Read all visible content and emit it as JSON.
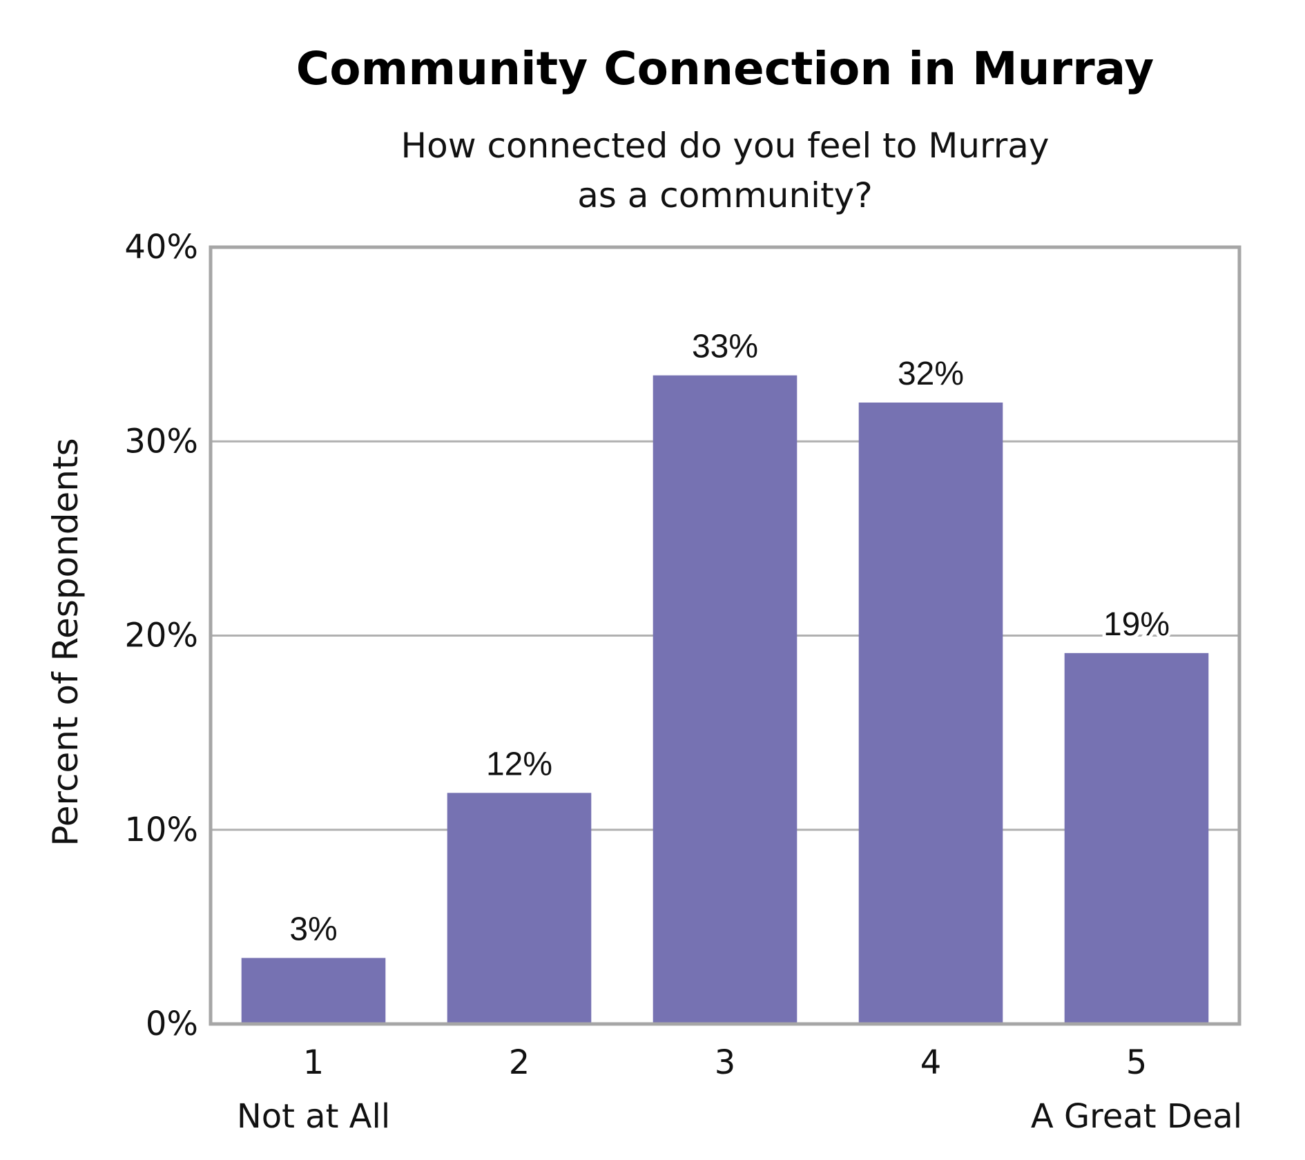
{
  "chart_data": {
    "type": "bar",
    "title": "Community Connection in Murray",
    "subtitle_lines": [
      "How connected do you feel to Murray",
      "as a community?"
    ],
    "ylabel": "Percent of Respondents",
    "xlabel": "",
    "categories": [
      "1",
      "2",
      "3",
      "4",
      "5"
    ],
    "category_sublabels": [
      "Not at All",
      "",
      "",
      "",
      "A Great Deal"
    ],
    "values": [
      3.4,
      11.9,
      33.4,
      32.0,
      19.1
    ],
    "data_labels": [
      "3%",
      "12%",
      "33%",
      "32%",
      "19%"
    ],
    "ylim": [
      0,
      40
    ],
    "yticks": [
      0,
      10,
      20,
      30,
      40
    ],
    "ytick_labels": [
      "0%",
      "10%",
      "20%",
      "30%",
      "40%"
    ],
    "grid": true,
    "legend": "none",
    "colors": {
      "bar": "#7672b2",
      "grid": "#b0b0b0",
      "frame": "#a6a6a6"
    }
  }
}
